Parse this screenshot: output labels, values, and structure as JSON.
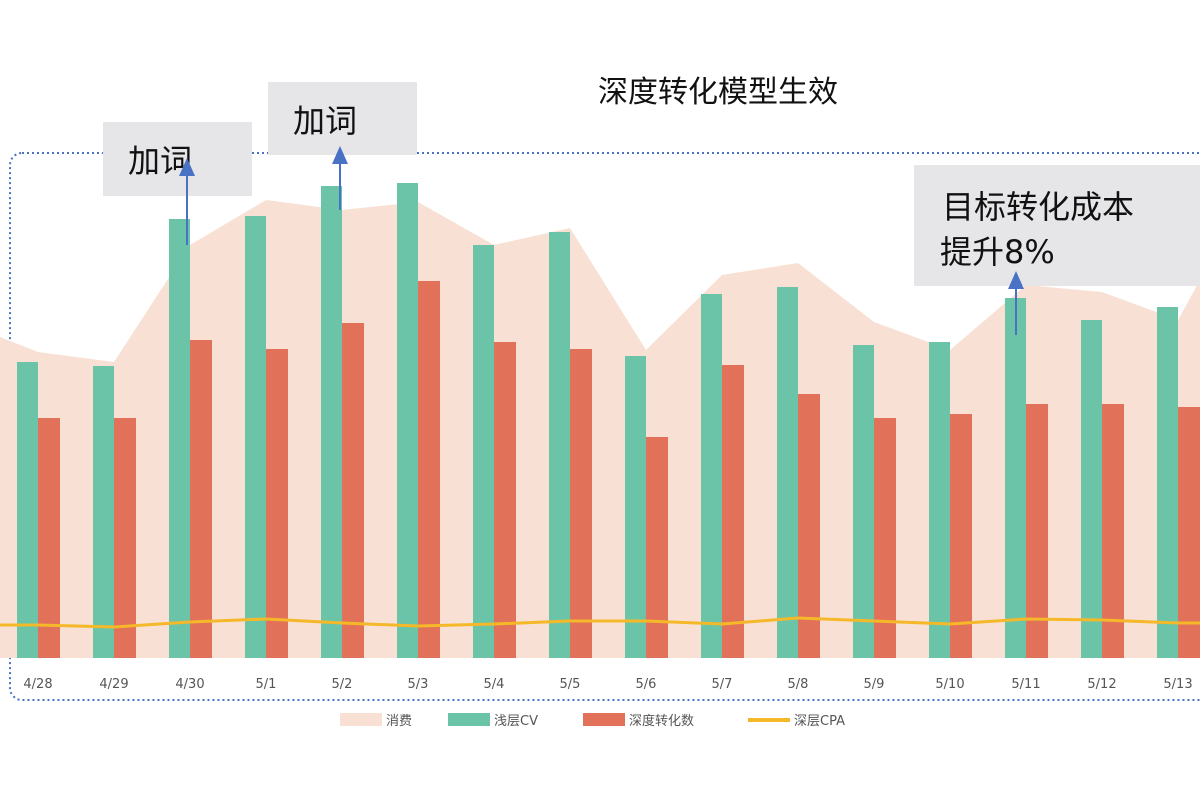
{
  "chart_data": {
    "type": "bar",
    "title": "深度转化模型生效",
    "xlabel": "",
    "ylabel": "",
    "ylim": [
      0,
      100
    ],
    "grid": false,
    "legend_position": "bottom",
    "categories": [
      "4/28",
      "4/29",
      "4/30",
      "5/1",
      "5/2",
      "5/3",
      "5/4",
      "5/5",
      "5/6",
      "5/7",
      "5/8",
      "5/9",
      "5/10",
      "5/11",
      "5/12",
      "5/13"
    ],
    "series": [
      {
        "name": "消费",
        "type": "area",
        "color": "#f8e1d4",
        "values": [
          61.2,
          59.2,
          82.6,
          91.6,
          89.6,
          91.2,
          82.6,
          86,
          61.6,
          76.6,
          79,
          67.2,
          61.6,
          74.6,
          73.2,
          67.6
        ]
      },
      {
        "name": "浅层CV",
        "type": "bar",
        "color": "#6cc4a8",
        "values": [
          59.2,
          58.4,
          87.8,
          88.4,
          94.4,
          95,
          82.6,
          85.2,
          60.4,
          72.8,
          74.2,
          62.6,
          63.2,
          72,
          67.6,
          70.2
        ]
      },
      {
        "name": "深度转化数",
        "type": "bar",
        "color": "#e2715a",
        "values": [
          48,
          48,
          63.6,
          61.8,
          67,
          75.4,
          63.2,
          61.8,
          44.2,
          58.6,
          52.8,
          48,
          48.8,
          50.8,
          50.8,
          50.2
        ]
      },
      {
        "name": "深层CPA",
        "type": "line",
        "color": "#f5b828",
        "values": [
          6.6,
          6.2,
          7.2,
          7.8,
          7,
          6.4,
          6.8,
          7.4,
          7.4,
          6.8,
          8,
          7.4,
          6.8,
          7.8,
          7.6,
          7
        ]
      }
    ],
    "annotations": [
      {
        "text": "加词",
        "category": "4/30"
      },
      {
        "text": "加词",
        "category": "5/2"
      },
      {
        "text": "目标转化成本\n提升8%",
        "category": "5/11"
      }
    ]
  },
  "annotation_lines": [
    "加词",
    "加词",
    "目标转化成本",
    "提升8%"
  ],
  "colors": {
    "border": "#4a72c4",
    "arrow": "#4a72c4",
    "annotation_bg": "#e6e6e8"
  }
}
